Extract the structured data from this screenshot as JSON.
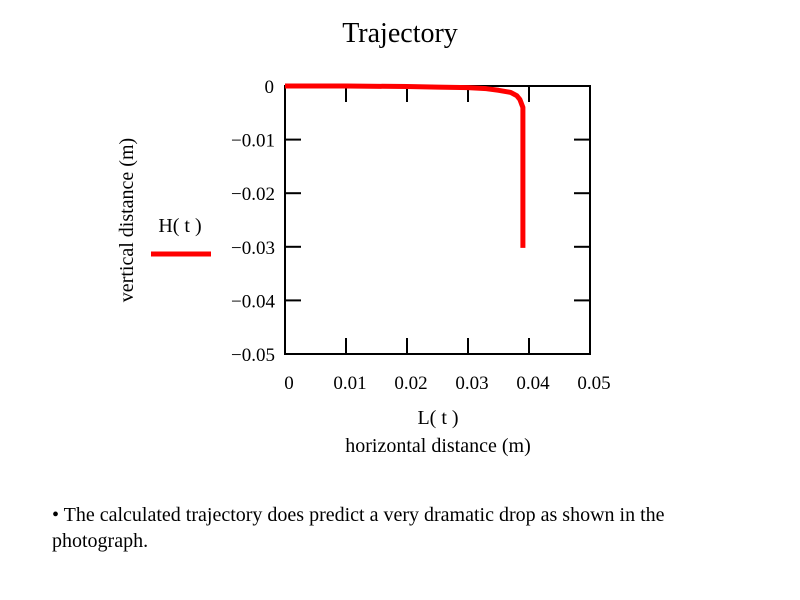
{
  "chart_data": {
    "type": "line",
    "title": "Trajectory",
    "xlabel_var": "L( t )",
    "xlabel": "horizontal distance (m)",
    "ylabel": "vertical distance (m)",
    "legend_label": "H( t )",
    "xlim": [
      0,
      0.05
    ],
    "ylim": [
      -0.05,
      0
    ],
    "x_ticks": [
      0,
      0.01,
      0.02,
      0.03,
      0.04,
      0.05
    ],
    "x_tick_labels": [
      "0",
      "0.01",
      "0.02",
      "0.03",
      "0.04",
      "0.05"
    ],
    "y_ticks": [
      0,
      -0.01,
      -0.02,
      -0.03,
      -0.04,
      -0.05
    ],
    "y_tick_labels": [
      "0",
      "−0.01",
      "−0.02",
      "−0.03",
      "−0.04",
      "−0.05"
    ],
    "grid": false,
    "legend_position": "left",
    "series": [
      {
        "color": "#ff0000",
        "x": [
          0,
          0.01,
          0.02,
          0.025,
          0.03,
          0.033,
          0.035,
          0.037,
          0.038,
          0.0385,
          0.039,
          0.039,
          0.039
        ],
        "y": [
          0,
          0,
          -0.0001,
          -0.0002,
          -0.0003,
          -0.0005,
          -0.0008,
          -0.0012,
          -0.0018,
          -0.0025,
          -0.004,
          -0.015,
          -0.0302
        ]
      }
    ]
  },
  "bullet": {
    "text": "• The calculated trajectory does predict a very dramatic drop as shown in the photograph."
  }
}
